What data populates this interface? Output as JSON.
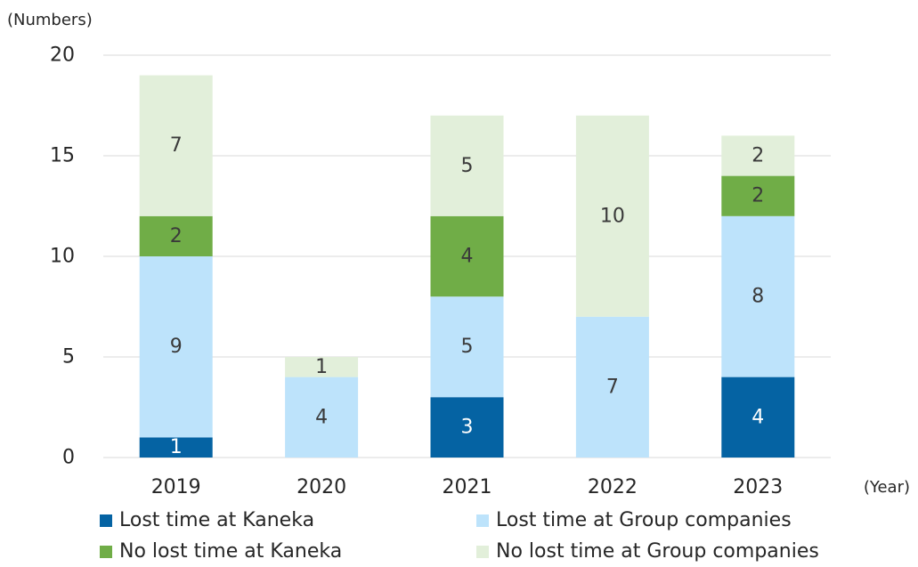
{
  "chart_data": {
    "type": "bar",
    "stacked": true,
    "ylabel": "(Numbers)",
    "xlabel": "(Year)",
    "ylim": [
      0,
      20
    ],
    "yticks": [
      0,
      5,
      10,
      15,
      20
    ],
    "grid": true,
    "legend_position": "bottom",
    "categories": [
      "2019",
      "2020",
      "2021",
      "2022",
      "2023"
    ],
    "series": [
      {
        "name": "Lost time at Kaneka",
        "color": "#0563a3",
        "label_color": "#ffffff",
        "values": [
          1,
          0,
          3,
          0,
          4
        ]
      },
      {
        "name": "Lost time at Group companies",
        "color": "#bde3fb",
        "label_color": "#3a3a3a",
        "values": [
          9,
          4,
          5,
          7,
          8
        ]
      },
      {
        "name": "No lost time at Kaneka",
        "color": "#70ad47",
        "label_color": "#3a3a3a",
        "values": [
          2,
          0,
          4,
          0,
          2
        ]
      },
      {
        "name": "No lost time at Group companies",
        "color": "#e2efda",
        "label_color": "#3a3a3a",
        "values": [
          7,
          1,
          5,
          10,
          2
        ]
      }
    ]
  }
}
